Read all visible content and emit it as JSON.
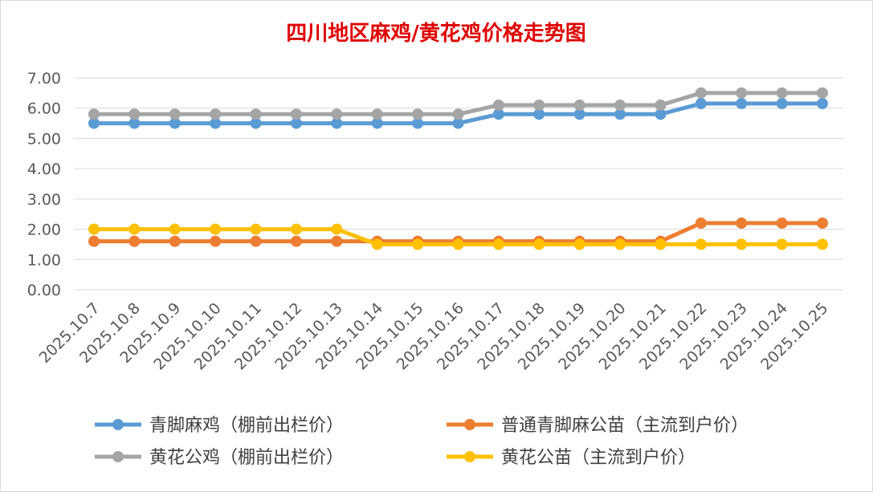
{
  "chart_data": {
    "type": "line",
    "title": "四川地区麻鸡/黄花鸡价格走势图",
    "xlabel": "",
    "ylabel": "",
    "ylim": [
      0,
      7
    ],
    "yticks": [
      "0.00",
      "1.00",
      "2.00",
      "3.00",
      "4.00",
      "5.00",
      "6.00",
      "7.00"
    ],
    "grid": true,
    "legend_position": "bottom",
    "categories": [
      "2025.10.7",
      "2025.10.8",
      "2025.10.9",
      "2025.10.10",
      "2025.10.11",
      "2025.10.12",
      "2025.10.13",
      "2025.10.14",
      "2025.10.15",
      "2025.10.16",
      "2025.10.17",
      "2025.10.18",
      "2025.10.19",
      "2025.10.20",
      "2025.10.21",
      "2025.10.22",
      "2025.10.23",
      "2025.10.24",
      "2025.10.25"
    ],
    "series": [
      {
        "name": "青脚麻鸡（棚前出栏价）",
        "color": "#5b9bd5",
        "values": [
          5.5,
          5.5,
          5.5,
          5.5,
          5.5,
          5.5,
          5.5,
          5.5,
          5.5,
          5.5,
          5.8,
          5.8,
          5.8,
          5.8,
          5.8,
          6.15,
          6.15,
          6.15,
          6.15
        ]
      },
      {
        "name": "普通青脚麻公苗（主流到户价）",
        "color": "#ed7d31",
        "values": [
          1.6,
          1.6,
          1.6,
          1.6,
          1.6,
          1.6,
          1.6,
          1.6,
          1.6,
          1.6,
          1.6,
          1.6,
          1.6,
          1.6,
          1.6,
          2.2,
          2.2,
          2.2,
          2.2
        ]
      },
      {
        "name": "黄花公鸡（棚前出栏价）",
        "color": "#a5a5a5",
        "values": [
          5.8,
          5.8,
          5.8,
          5.8,
          5.8,
          5.8,
          5.8,
          5.8,
          5.8,
          5.8,
          6.1,
          6.1,
          6.1,
          6.1,
          6.1,
          6.5,
          6.5,
          6.5,
          6.5
        ]
      },
      {
        "name": "黄花公苗（主流到户价）",
        "color": "#ffc000",
        "values": [
          2.0,
          2.0,
          2.0,
          2.0,
          2.0,
          2.0,
          2.0,
          1.5,
          1.5,
          1.5,
          1.5,
          1.5,
          1.5,
          1.5,
          1.5,
          1.5,
          1.5,
          1.5,
          1.5
        ]
      }
    ]
  }
}
